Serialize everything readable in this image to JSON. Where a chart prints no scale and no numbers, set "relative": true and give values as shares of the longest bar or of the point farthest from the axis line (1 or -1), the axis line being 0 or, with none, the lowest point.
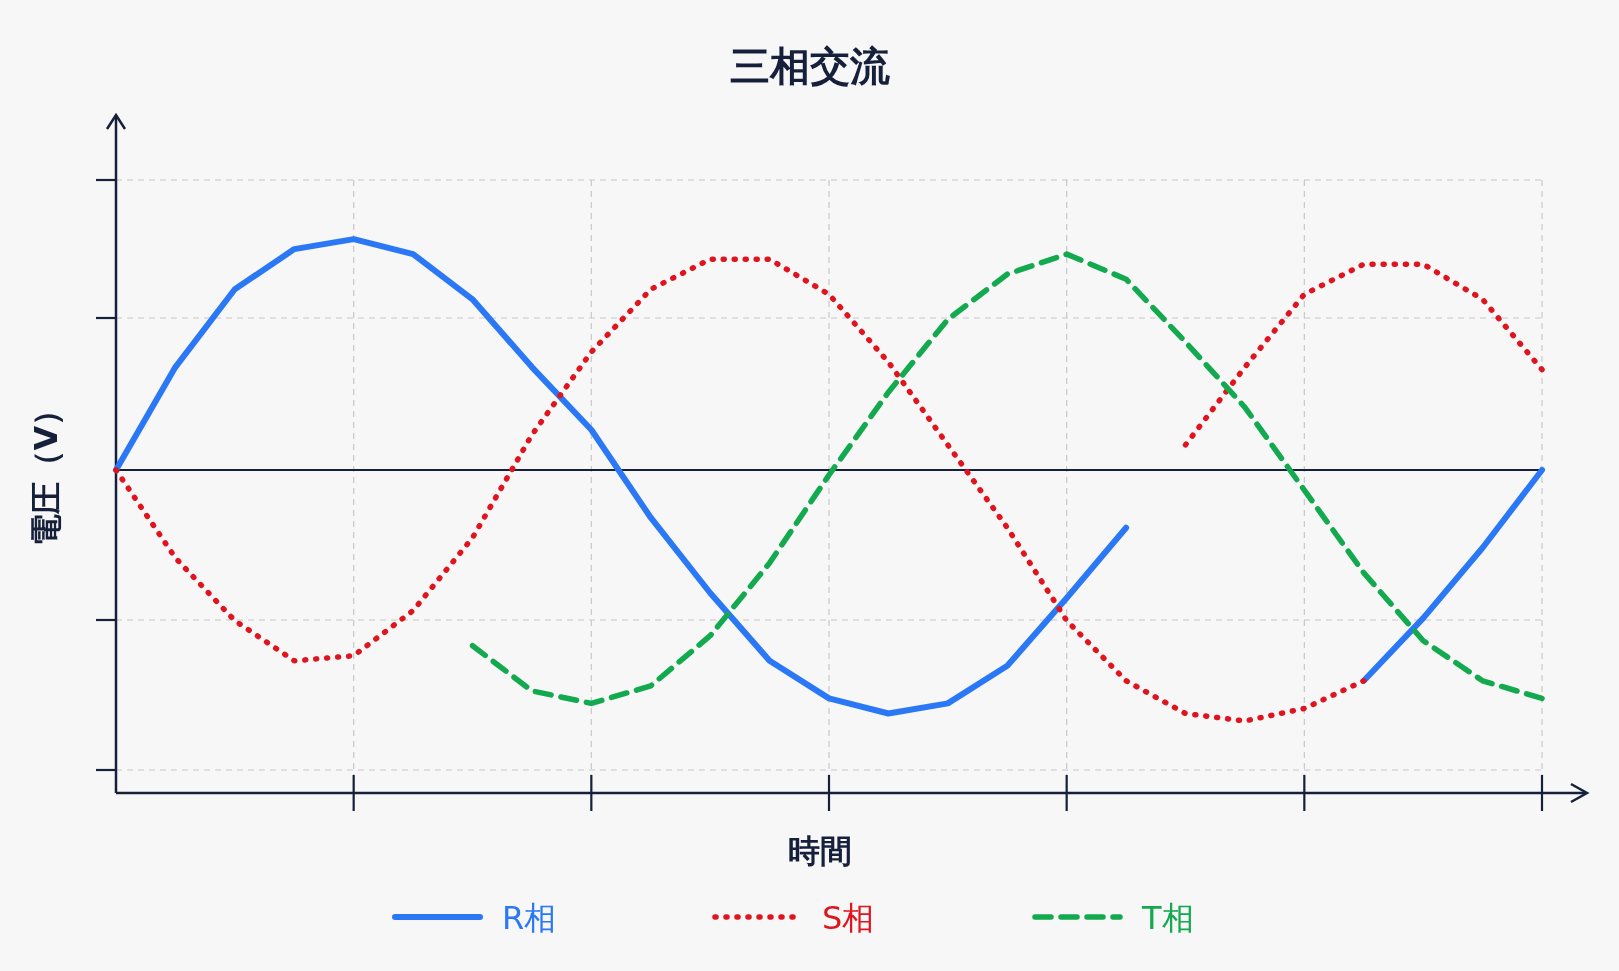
{
  "chart_data": {
    "type": "line",
    "title": "三相交流",
    "xlabel": "時間",
    "ylabel": "電圧（V）",
    "relative": true,
    "grid": true,
    "legend": "bottom",
    "categories": [
      null,
      null,
      null,
      null,
      null,
      null,
      null,
      null,
      null,
      null,
      null,
      null,
      null,
      null,
      null,
      null,
      null,
      null,
      null,
      null,
      null,
      null,
      null,
      null,
      null
    ],
    "series": [
      {
        "name": "R相",
        "color": "#2a78f5",
        "line_style": "solid",
        "values": [
          0,
          0.41,
          0.72,
          0.88,
          0.92,
          0.86,
          0.68,
          0.41,
          0.16,
          -0.19,
          -0.49,
          -0.76,
          -0.91,
          -0.97,
          -0.93,
          -0.78,
          -0.51,
          -0.23,
          null,
          null,
          null,
          -0.84,
          -0.59,
          -0.31,
          0
        ]
      },
      {
        "name": "S相",
        "color": "#e0141e",
        "line_style": "dotted",
        "values": [
          0,
          -0.35,
          -0.6,
          -0.76,
          -0.74,
          -0.56,
          -0.27,
          0.14,
          0.47,
          0.72,
          0.84,
          0.84,
          0.7,
          0.43,
          0.1,
          -0.23,
          -0.6,
          -0.84,
          -0.97,
          -1,
          -0.95,
          -0.84,
          null,
          null,
          null
        ]
      },
      {
        "color": "#e0141e",
        "line_style": "dotted",
        "values": [
          null,
          null,
          null,
          null,
          null,
          null,
          null,
          null,
          null,
          null,
          null,
          null,
          null,
          null,
          null,
          null,
          null,
          null,
          0.1,
          0.41,
          0.7,
          0.82,
          0.82,
          0.68,
          0.4
        ]
      },
      {
        "name": "T相",
        "color": "#12a94f",
        "line_style": "dashed",
        "values": [
          null,
          null,
          null,
          null,
          null,
          null,
          -0.7,
          -0.88,
          -0.93,
          -0.86,
          -0.66,
          -0.37,
          -0.02,
          0.31,
          0.6,
          0.78,
          0.86,
          0.76,
          0.51,
          0.25,
          -0.08,
          -0.41,
          -0.68,
          -0.84,
          -0.91
        ]
      }
    ]
  }
}
